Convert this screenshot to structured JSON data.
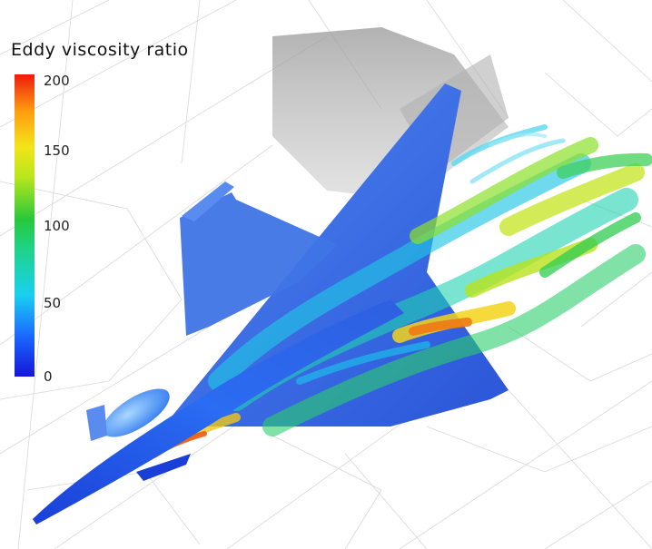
{
  "legend": {
    "title": "Eddy viscosity ratio",
    "ticks": [
      "200",
      "150",
      "100",
      "50",
      "0"
    ]
  },
  "colors": {
    "low": "#1515d8",
    "mid_low": "#19d0f0",
    "mid": "#28c83a",
    "mid_high": "#f3e41a",
    "high": "#ee1a0e",
    "aircraft_surface": "#1f5fe8",
    "mesh_lines": "#d0d0d0"
  },
  "scene": {
    "subject": "aircraft-with-turbulent-wake"
  }
}
